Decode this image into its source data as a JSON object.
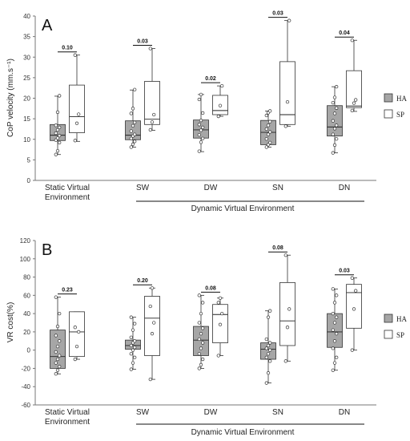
{
  "legend": [
    {
      "name": "HA",
      "color": "#a6a6a6"
    },
    {
      "name": "SP",
      "color": "#ffffff"
    }
  ],
  "group_label": "Dynamic Virtual Environment",
  "chart_data": [
    {
      "panel": "A",
      "type": "box",
      "ylabel": "CoP velocity (mm.s⁻¹)",
      "ylim": [
        0,
        40
      ],
      "yticks": [
        0,
        5,
        10,
        15,
        20,
        25,
        30,
        35,
        40
      ],
      "categories": [
        "Static Virtual Environment",
        "SW",
        "DW",
        "SN",
        "DN"
      ],
      "series": [
        {
          "name": "HA",
          "boxes": [
            {
              "min": 6.3,
              "q1": 9.7,
              "median": 11,
              "q3": 13.6,
              "max": 20.5,
              "points": [
                6.3,
                7.2,
                9.2,
                9.8,
                10.3,
                10.9,
                11.5,
                12.3,
                12.9,
                13.4,
                16.6,
                20.6
              ]
            },
            {
              "min": 8.1,
              "q1": 9.9,
              "median": 11,
              "q3": 14.5,
              "max": 22,
              "points": [
                8.1,
                8.8,
                9.5,
                10.2,
                10.8,
                11.2,
                12,
                13.3,
                14.1,
                16.3,
                17.5,
                22.1
              ]
            },
            {
              "min": 7,
              "q1": 10.3,
              "median": 12.3,
              "q3": 14.7,
              "max": 20.9,
              "points": [
                7.1,
                9.3,
                10.2,
                11.1,
                12.2,
                12.9,
                13.6,
                14.6,
                16.4,
                19.7,
                20.9
              ]
            },
            {
              "min": 8.1,
              "q1": 8.7,
              "median": 11.7,
              "q3": 14.6,
              "max": 16.9,
              "points": [
                8.1,
                8.7,
                9.2,
                10.1,
                11.2,
                11.8,
                12.5,
                13.4,
                14.3,
                15.8,
                16.5,
                16.9
              ]
            },
            {
              "min": 6.7,
              "q1": 10.8,
              "median": 13,
              "q3": 18.2,
              "max": 22.8,
              "points": [
                6.7,
                8.6,
                10.1,
                11.2,
                12.6,
                13.4,
                14.5,
                16.3,
                17.6,
                18.9,
                20.2,
                22.8
              ]
            }
          ]
        },
        {
          "name": "SP",
          "boxes": [
            {
              "min": 9.5,
              "q1": 11.6,
              "median": 15.5,
              "q3": 23.2,
              "max": 30.5,
              "points": [
                9.7,
                13.9,
                16.1,
                30.5
              ]
            },
            {
              "min": 12.2,
              "q1": 13.6,
              "median": 14.9,
              "q3": 24.1,
              "max": 32.1,
              "points": [
                12.3,
                14.2,
                16,
                32.1
              ]
            },
            {
              "min": 15.6,
              "q1": 16,
              "median": 17,
              "q3": 20.7,
              "max": 23,
              "points": [
                15.6,
                18.2,
                23
              ]
            },
            {
              "min": 13.2,
              "q1": 13.6,
              "median": 16,
              "q3": 28.9,
              "max": 38.9,
              "points": [
                13.2,
                19.1,
                38.9
              ]
            },
            {
              "min": 16.8,
              "q1": 17.7,
              "median": 18.1,
              "q3": 26.7,
              "max": 34.1,
              "points": [
                17,
                18.8,
                19.6,
                34.1
              ]
            }
          ]
        }
      ],
      "annotations": [
        "0.10",
        "0.03",
        "0.02",
        "0.03",
        "0.04"
      ]
    },
    {
      "panel": "B",
      "type": "box",
      "ylabel": "VR cost(%)",
      "ylim": [
        -60,
        120
      ],
      "yticks": [
        -60,
        -40,
        -20,
        0,
        20,
        40,
        60,
        80,
        100,
        120
      ],
      "categories": [
        "Static Virtual Environment",
        "SW",
        "DW",
        "SN",
        "DN"
      ],
      "series": [
        {
          "name": "HA",
          "boxes": [
            {
              "min": -26,
              "q1": -20,
              "median": -7,
              "q3": 22,
              "max": 58,
              "points": [
                -26,
                -22,
                -18,
                -14,
                -10,
                -6,
                -2,
                4,
                10,
                16,
                26,
                40,
                58
              ]
            },
            {
              "min": -21,
              "q1": 1,
              "median": 5,
              "q3": 11,
              "max": 36,
              "points": [
                -21,
                -14,
                -8,
                -4,
                0,
                3,
                5,
                8,
                10,
                14,
                22,
                29,
                36
              ]
            },
            {
              "min": -20,
              "q1": -6,
              "median": 11,
              "q3": 26,
              "max": 60,
              "points": [
                -20,
                -16,
                -10,
                -4,
                2,
                8,
                12,
                18,
                24,
                30,
                40,
                52,
                60
              ]
            },
            {
              "min": -36,
              "q1": -10,
              "median": 1,
              "q3": 8,
              "max": 43,
              "points": [
                -36,
                -25,
                -12,
                -8,
                -4,
                0,
                2,
                5,
                8,
                12,
                36,
                43
              ]
            },
            {
              "min": -22,
              "q1": 3,
              "median": 20,
              "q3": 40,
              "max": 67,
              "points": [
                -22,
                -14,
                -8,
                2,
                10,
                18,
                22,
                30,
                36,
                40,
                52,
                60,
                67
              ]
            }
          ]
        },
        {
          "name": "SP",
          "boxes": [
            {
              "min": -10,
              "q1": -7,
              "median": 20,
              "q3": 42,
              "max": 42,
              "points": [
                -10,
                4,
                20,
                25
              ]
            },
            {
              "min": -32,
              "q1": -6,
              "median": 35,
              "q3": 59,
              "max": 68,
              "points": [
                -32,
                18,
                30,
                48,
                68
              ]
            },
            {
              "min": -6,
              "q1": 8,
              "median": 39,
              "q3": 50,
              "max": 57,
              "points": [
                -6,
                28,
                40,
                52,
                57
              ]
            },
            {
              "min": -12,
              "q1": 5,
              "median": 32,
              "q3": 74,
              "max": 104,
              "points": [
                -12,
                25,
                45,
                104
              ]
            },
            {
              "min": 0,
              "q1": 24,
              "median": 63,
              "q3": 72,
              "max": 79,
              "points": [
                0,
                45,
                65,
                79
              ]
            }
          ]
        }
      ],
      "annotations": [
        "0.23",
        "0.20",
        "0.08",
        "0.08",
        "0.03"
      ]
    }
  ]
}
